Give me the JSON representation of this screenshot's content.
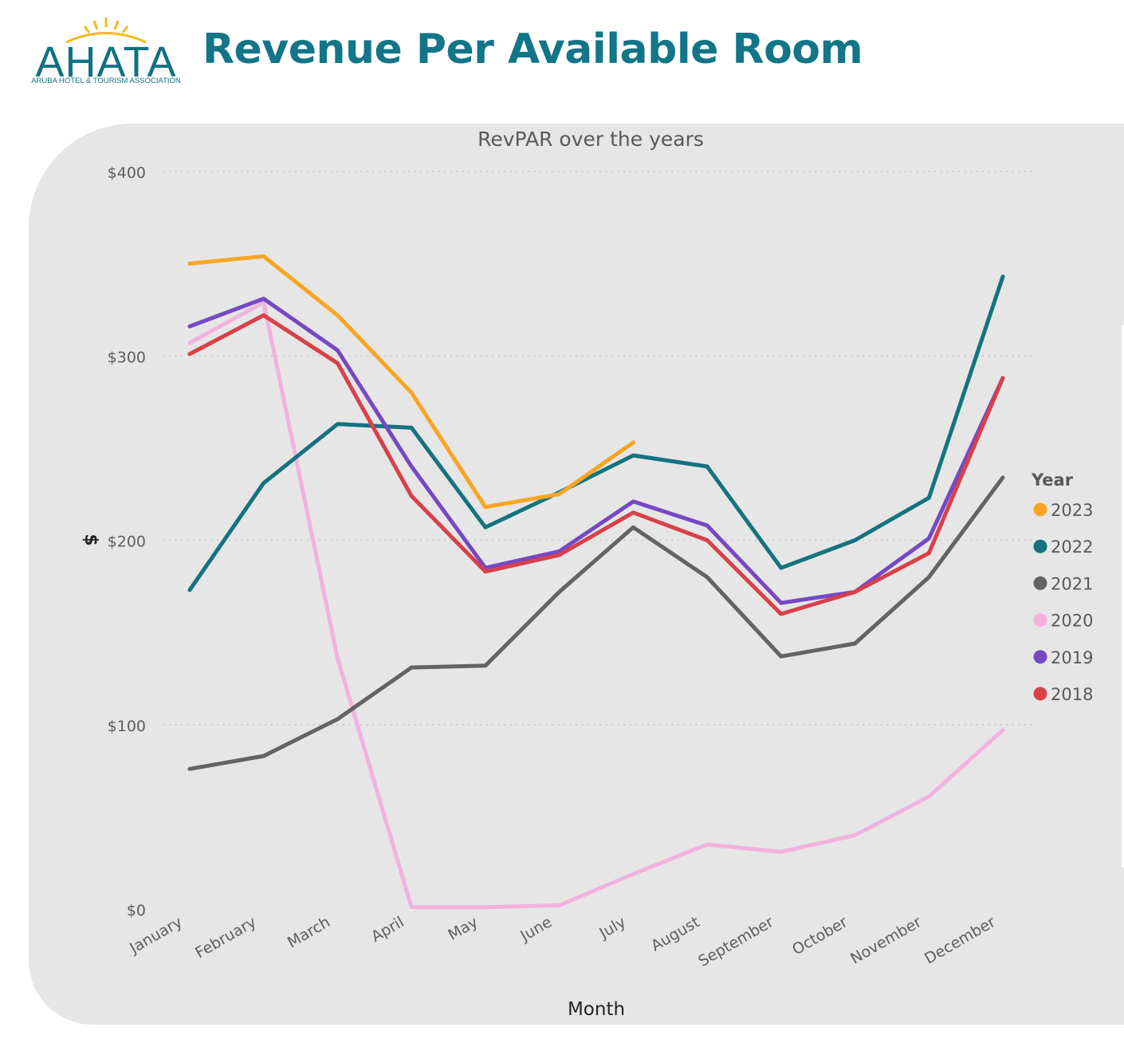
{
  "header": {
    "logo_text": "AHATA",
    "logo_subtitle": "ARUBA HOTEL & TOURISM ASSOCIATION",
    "title": "Revenue Per Available Room"
  },
  "colors": {
    "title": "#127588",
    "panel_background": "#e6e6e6",
    "2023": "#f9a524",
    "2022": "#15727f",
    "2021": "#636363",
    "2020": "#f2b2dd",
    "2019": "#7449c3",
    "2018": "#d8404a"
  },
  "chart_data": {
    "type": "line",
    "title": "RevPAR over the years",
    "xlabel": "Month",
    "ylabel": "$",
    "ylim": [
      0,
      400
    ],
    "y_ticks": [
      0,
      100,
      200,
      300,
      400
    ],
    "y_tick_labels": [
      "$0",
      "$100",
      "$200",
      "$300",
      "$400"
    ],
    "grid": "horizontal dotted",
    "legend_title": "Year",
    "legend_position": "right",
    "categories": [
      "January",
      "February",
      "March",
      "April",
      "May",
      "June",
      "July",
      "August",
      "September",
      "October",
      "November",
      "December"
    ],
    "series": [
      {
        "name": "2023",
        "color": "#f9a524",
        "values": [
          350,
          354,
          322,
          280,
          218,
          225,
          253,
          null,
          null,
          null,
          null,
          null
        ]
      },
      {
        "name": "2022",
        "color": "#15727f",
        "values": [
          173,
          231,
          263,
          261,
          207,
          226,
          246,
          240,
          185,
          200,
          223,
          343
        ]
      },
      {
        "name": "2021",
        "color": "#636363",
        "values": [
          76,
          83,
          103,
          131,
          132,
          172,
          207,
          180,
          137,
          144,
          180,
          234
        ]
      },
      {
        "name": "2020",
        "color": "#f2b2dd",
        "values": [
          307,
          329,
          136,
          1,
          1,
          2,
          19,
          35,
          31,
          40,
          61,
          97
        ]
      },
      {
        "name": "2019",
        "color": "#7449c3",
        "values": [
          316,
          331,
          303,
          240,
          185,
          194,
          221,
          208,
          166,
          172,
          201,
          288
        ]
      },
      {
        "name": "2018",
        "color": "#d8404a",
        "values": [
          301,
          322,
          296,
          224,
          183,
          192,
          215,
          200,
          160,
          172,
          193,
          288
        ]
      }
    ]
  }
}
